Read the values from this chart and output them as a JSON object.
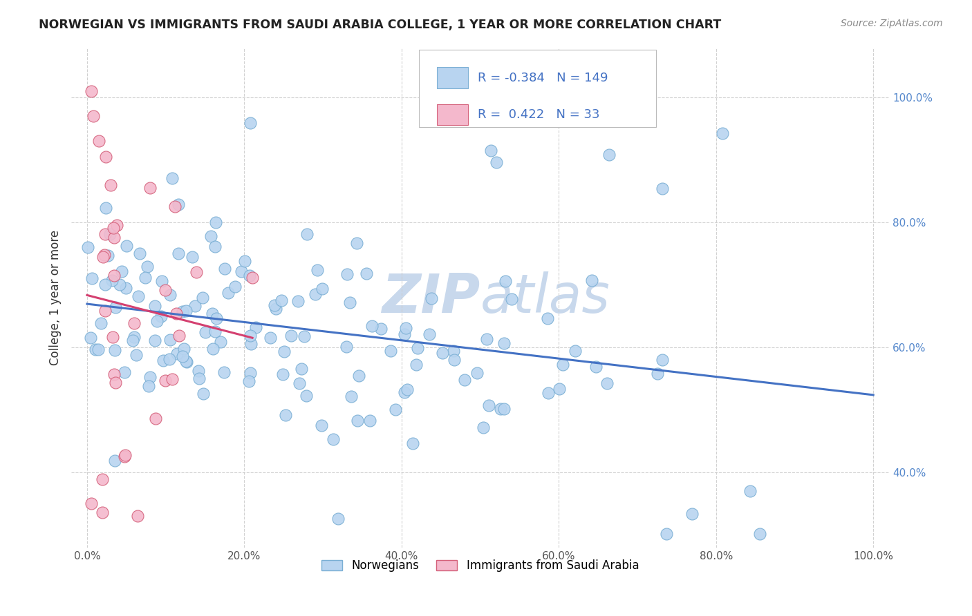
{
  "title": "NORWEGIAN VS IMMIGRANTS FROM SAUDI ARABIA COLLEGE, 1 YEAR OR MORE CORRELATION CHART",
  "source": "Source: ZipAtlas.com",
  "ylabel": "College, 1 year or more",
  "xlabel": "",
  "xlim": [
    -0.02,
    1.02
  ],
  "ylim": [
    0.28,
    1.08
  ],
  "x_ticks": [
    0.0,
    0.2,
    0.4,
    0.6,
    0.8,
    1.0
  ],
  "x_tick_labels": [
    "0.0%",
    "20.0%",
    "40.0%",
    "60.0%",
    "80.0%",
    "100.0%"
  ],
  "y_ticks": [
    0.4,
    0.6,
    0.8,
    1.0
  ],
  "y_tick_labels": [
    "40.0%",
    "60.0%",
    "80.0%",
    "100.0%"
  ],
  "legend_entries": [
    {
      "label": "Norwegians",
      "color": "#b8d4f0",
      "edge": "#7aafd4"
    },
    {
      "label": "Immigrants from Saudi Arabia",
      "color": "#f4b8cc",
      "edge": "#d4607a"
    }
  ],
  "R_norwegian": -0.384,
  "N_norwegian": 149,
  "R_saudi": 0.422,
  "N_saudi": 33,
  "blue_line_color": "#4472c4",
  "pink_line_color": "#d44070",
  "watermark": "ZIPatlas",
  "watermark_color": "#c8d8ec",
  "background_color": "#ffffff",
  "grid_color": "#cccccc"
}
